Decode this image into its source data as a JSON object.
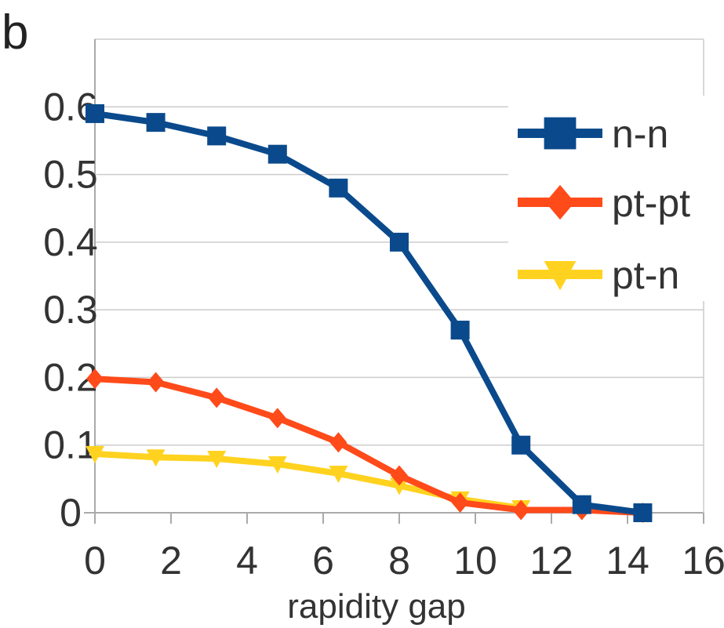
{
  "chart_data": {
    "type": "line",
    "panel_label": "b",
    "title": "",
    "xlabel": "rapidity gap",
    "ylabel": "",
    "xlim": [
      0,
      16
    ],
    "ylim": [
      0,
      0.7
    ],
    "x_ticks": [
      "0",
      "2",
      "4",
      "6",
      "8",
      "10",
      "12",
      "14",
      "16"
    ],
    "y_ticks": [
      "0",
      "0.1",
      "0.2",
      "0.3",
      "0.4",
      "0.5",
      "0.6"
    ],
    "grid": "horizontal",
    "legend_position": "top-right",
    "series": [
      {
        "name": "n-n",
        "color": "#0a4a8c",
        "marker": "square",
        "x": [
          0,
          1.6,
          3.2,
          4.8,
          6.4,
          8.0,
          9.6,
          11.2,
          12.8,
          14.4
        ],
        "y": [
          0.59,
          0.577,
          0.557,
          0.53,
          0.48,
          0.4,
          0.27,
          0.1,
          0.012,
          0.0
        ]
      },
      {
        "name": "pt-pt",
        "color": "#ff4a1a",
        "marker": "diamond",
        "x": [
          0,
          1.6,
          3.2,
          4.8,
          6.4,
          8.0,
          9.6,
          11.2,
          12.8,
          14.4
        ],
        "y": [
          0.198,
          0.193,
          0.17,
          0.14,
          0.104,
          0.055,
          0.015,
          0.004,
          0.004,
          0.0
        ]
      },
      {
        "name": "pt-n",
        "color": "#ffd21f",
        "marker": "triangle-down",
        "x": [
          0,
          1.6,
          3.2,
          4.8,
          6.4,
          8.0,
          9.6,
          11.2
        ],
        "y": [
          0.087,
          0.082,
          0.08,
          0.072,
          0.058,
          0.04,
          0.02,
          0.007
        ]
      }
    ]
  }
}
